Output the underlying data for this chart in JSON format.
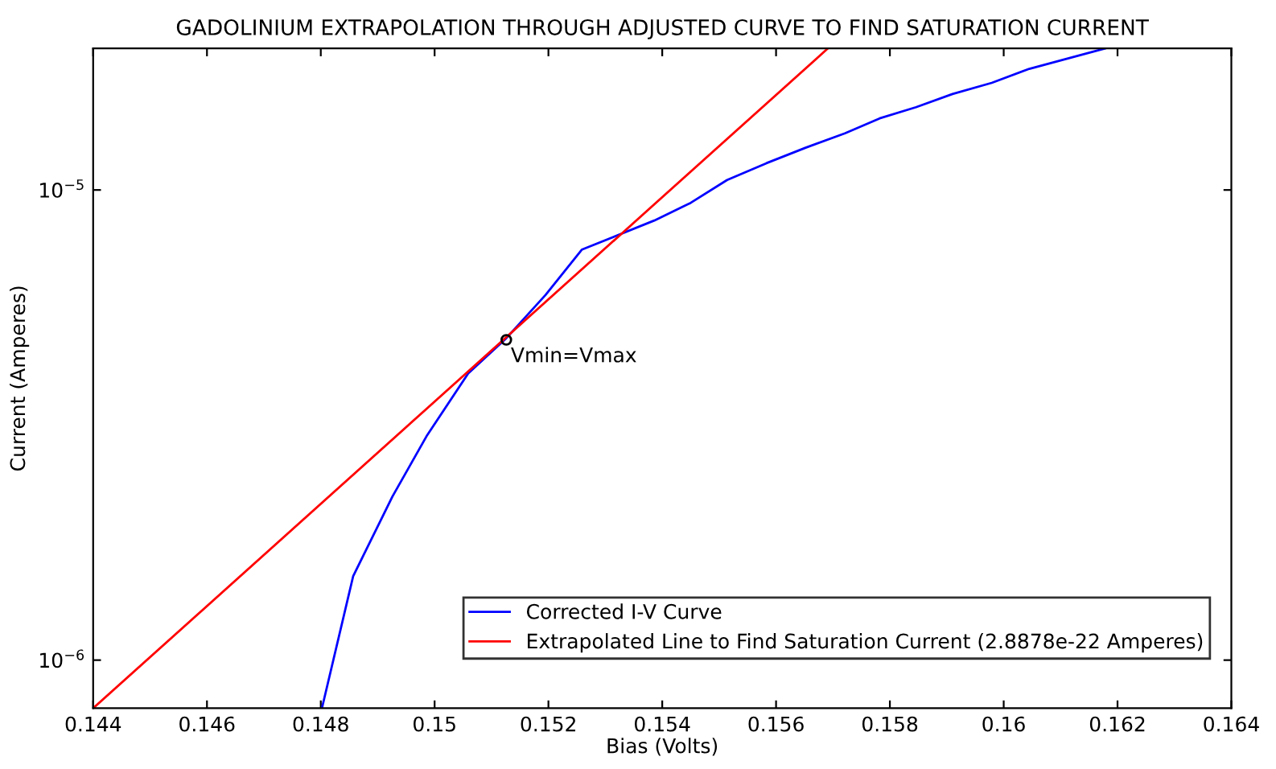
{
  "chart_data": {
    "type": "line",
    "title": "GADOLINIUM EXTRAPOLATION THROUGH ADJUSTED CURVE TO FIND SATURATION CURRENT",
    "xlabel": "Bias (Volts)",
    "ylabel": "Current (Amperes)",
    "series": [
      {
        "name": "Corrected I-V Curve",
        "color": "#0000ff",
        "x": [
          0.14802,
          0.14857,
          0.14926,
          0.14987,
          0.15059,
          0.15126,
          0.15195,
          0.15259,
          0.15386,
          0.1545,
          0.15514,
          0.15583,
          0.15652,
          0.15721,
          0.15782,
          0.15846,
          0.1591,
          0.15979,
          0.16045,
          0.16117,
          0.16178
        ],
        "values": [
          7.9e-07,
          1.51e-06,
          2.23e-06,
          3.01e-06,
          4.07e-06,
          4.84e-06,
          5.98e-06,
          7.47e-06,
          8.61e-06,
          9.39e-06,
          1.05e-05,
          1.14e-05,
          1.23e-05,
          1.32e-05,
          1.42e-05,
          1.5e-05,
          1.6e-05,
          1.69e-05,
          1.81e-05,
          1.91e-05,
          2e-05
        ]
      },
      {
        "name": "Extrapolated Line to Find Saturation Current (2.8878e-22 Amperes)",
        "color": "#ff0000",
        "x": [
          0.144,
          0.15691
        ],
        "values": [
          7.9e-07,
          2e-05
        ]
      },
      {
        "type": "scatter",
        "color": "#000000",
        "marker": "circle",
        "x": [
          0.15126
        ],
        "values": [
          4.8e-06
        ]
      }
    ],
    "annotations": [
      {
        "text": "Vmin=Vmax",
        "x": 0.15126,
        "y": 4.8e-06
      }
    ],
    "log": "y",
    "xlim": [
      0.144,
      0.164
    ],
    "xticks": [
      0.144,
      0.146,
      0.148,
      0.15,
      0.152,
      0.154,
      0.156,
      0.158,
      0.16,
      0.162,
      0.164
    ],
    "ylim": [
      7.9e-07,
      2e-05
    ],
    "yticks": [
      {
        "value": 1e-06,
        "label": "10$^{−6}$"
      },
      {
        "value": 1e-05,
        "label": "10$^{−5}$"
      }
    ],
    "grid": false,
    "legend": "bottom right"
  }
}
